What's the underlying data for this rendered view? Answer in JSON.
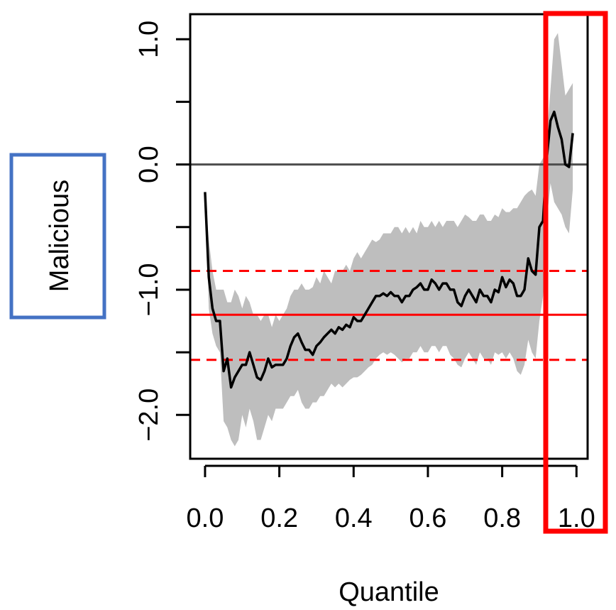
{
  "chart_data": {
    "type": "line",
    "title": "",
    "xlabel": "Quantile",
    "ylabel": "Malicious",
    "xlim": [
      -0.04,
      1.03
    ],
    "ylim": [
      -2.35,
      1.2
    ],
    "x_ticks": [
      0.0,
      0.2,
      0.4,
      0.6,
      0.8,
      1.0
    ],
    "x_tick_labels": [
      "0.0",
      "0.2",
      "0.4",
      "0.6",
      "0.8",
      "1.0"
    ],
    "y_ticks": [
      -2.0,
      -1.5,
      -1.0,
      -0.5,
      0.0,
      0.5,
      1.0
    ],
    "y_tick_labels": [
      "−2.0",
      "",
      "−1.0",
      "",
      "0.0",
      "",
      "1.0"
    ],
    "grid": false,
    "legend": "none",
    "reference_lines": [
      {
        "y": 0.0,
        "style": "solid",
        "color": "#4d4d4d"
      },
      {
        "y": -1.2,
        "style": "solid",
        "color": "#ff0000"
      },
      {
        "y": -0.85,
        "style": "dashed",
        "color": "#ff0000"
      },
      {
        "y": -1.56,
        "style": "dashed",
        "color": "#ff0000"
      }
    ],
    "series": [
      {
        "color": "#000000",
        "band_color": "#bebebe",
        "x": [
          0.0,
          0.01,
          0.02,
          0.03,
          0.04,
          0.05,
          0.06,
          0.07,
          0.08,
          0.09,
          0.1,
          0.11,
          0.12,
          0.13,
          0.14,
          0.15,
          0.16,
          0.17,
          0.18,
          0.19,
          0.2,
          0.21,
          0.22,
          0.23,
          0.24,
          0.25,
          0.26,
          0.27,
          0.28,
          0.29,
          0.3,
          0.31,
          0.32,
          0.33,
          0.34,
          0.35,
          0.36,
          0.37,
          0.38,
          0.39,
          0.4,
          0.41,
          0.42,
          0.43,
          0.44,
          0.45,
          0.46,
          0.47,
          0.48,
          0.49,
          0.5,
          0.51,
          0.52,
          0.53,
          0.54,
          0.55,
          0.56,
          0.57,
          0.58,
          0.59,
          0.6,
          0.61,
          0.62,
          0.63,
          0.64,
          0.65,
          0.66,
          0.67,
          0.68,
          0.69,
          0.7,
          0.71,
          0.72,
          0.73,
          0.74,
          0.75,
          0.76,
          0.77,
          0.78,
          0.79,
          0.8,
          0.81,
          0.82,
          0.83,
          0.84,
          0.85,
          0.86,
          0.87,
          0.88,
          0.89,
          0.9,
          0.91,
          0.92,
          0.93,
          0.94,
          0.95,
          0.96,
          0.97,
          0.98,
          0.99
        ],
        "y": [
          -0.22,
          -0.9,
          -1.15,
          -1.25,
          -1.25,
          -1.65,
          -1.55,
          -1.78,
          -1.7,
          -1.65,
          -1.6,
          -1.6,
          -1.5,
          -1.6,
          -1.7,
          -1.72,
          -1.65,
          -1.55,
          -1.62,
          -1.6,
          -1.6,
          -1.6,
          -1.55,
          -1.45,
          -1.38,
          -1.35,
          -1.42,
          -1.48,
          -1.48,
          -1.52,
          -1.45,
          -1.42,
          -1.38,
          -1.35,
          -1.32,
          -1.35,
          -1.3,
          -1.32,
          -1.28,
          -1.3,
          -1.22,
          -1.25,
          -1.25,
          -1.2,
          -1.15,
          -1.1,
          -1.05,
          -1.05,
          -1.03,
          -1.05,
          -1.02,
          -1.05,
          -1.05,
          -1.1,
          -1.05,
          -1.05,
          -1.0,
          -0.98,
          -0.95,
          -1.0,
          -1.0,
          -0.92,
          -0.95,
          -1.0,
          -0.95,
          -0.95,
          -1.0,
          -1.0,
          -1.1,
          -1.13,
          -1.05,
          -1.0,
          -1.05,
          -1.1,
          -1.0,
          -1.05,
          -1.05,
          -1.1,
          -1.0,
          -1.02,
          -0.9,
          -0.98,
          -0.92,
          -0.95,
          -1.05,
          -1.05,
          -1.0,
          -0.75,
          -0.85,
          -0.88,
          -0.5,
          -0.45,
          0.05,
          0.35,
          0.42,
          0.3,
          0.2,
          0.0,
          -0.02,
          0.25
        ],
        "upper": [
          -0.22,
          -0.6,
          -0.85,
          -1.0,
          -1.0,
          -1.0,
          -1.1,
          -1.1,
          -1.0,
          -1.05,
          -1.15,
          -1.05,
          -1.1,
          -1.2,
          -1.2,
          -1.25,
          -1.2,
          -1.2,
          -1.3,
          -1.2,
          -1.25,
          -1.2,
          -1.15,
          -1.05,
          -1.0,
          -1.0,
          -0.95,
          -1.0,
          -1.0,
          -0.98,
          -0.9,
          -0.95,
          -0.85,
          -0.9,
          -0.95,
          -0.85,
          -0.85,
          -0.85,
          -0.8,
          -0.85,
          -0.75,
          -0.7,
          -0.75,
          -0.7,
          -0.65,
          -0.6,
          -0.62,
          -0.6,
          -0.55,
          -0.55,
          -0.55,
          -0.5,
          -0.5,
          -0.55,
          -0.5,
          -0.55,
          -0.5,
          -0.55,
          -0.45,
          -0.5,
          -0.5,
          -0.45,
          -0.5,
          -0.45,
          -0.5,
          -0.45,
          -0.45,
          -0.45,
          -0.5,
          -0.45,
          -0.4,
          -0.42,
          -0.45,
          -0.45,
          -0.4,
          -0.4,
          -0.45,
          -0.45,
          -0.4,
          -0.42,
          -0.35,
          -0.38,
          -0.38,
          -0.35,
          -0.35,
          -0.3,
          -0.25,
          -0.22,
          -0.2,
          -0.25,
          0.0,
          0.05,
          0.2,
          0.6,
          1.0,
          1.05,
          0.8,
          0.55,
          0.6,
          0.65
        ],
        "lower": [
          -0.22,
          -1.15,
          -1.35,
          -1.45,
          -1.5,
          -2.05,
          -2.1,
          -2.2,
          -2.25,
          -2.2,
          -2.0,
          -2.1,
          -1.95,
          -2.05,
          -2.2,
          -2.2,
          -2.1,
          -2.0,
          -2.05,
          -1.95,
          -1.95,
          -1.95,
          -1.9,
          -1.85,
          -1.85,
          -1.8,
          -1.9,
          -1.95,
          -1.95,
          -1.9,
          -1.9,
          -1.85,
          -1.85,
          -1.8,
          -1.75,
          -1.78,
          -1.75,
          -1.78,
          -1.75,
          -1.72,
          -1.7,
          -1.7,
          -1.68,
          -1.65,
          -1.62,
          -1.6,
          -1.55,
          -1.52,
          -1.5,
          -1.52,
          -1.5,
          -1.52,
          -1.55,
          -1.58,
          -1.55,
          -1.55,
          -1.5,
          -1.5,
          -1.45,
          -1.5,
          -1.5,
          -1.45,
          -1.45,
          -1.5,
          -1.45,
          -1.45,
          -1.52,
          -1.55,
          -1.6,
          -1.62,
          -1.55,
          -1.5,
          -1.55,
          -1.6,
          -1.5,
          -1.55,
          -1.55,
          -1.6,
          -1.5,
          -1.52,
          -1.5,
          -1.55,
          -1.5,
          -1.55,
          -1.65,
          -1.68,
          -1.6,
          -1.4,
          -1.5,
          -1.55,
          -1.25,
          -1.05,
          -0.45,
          -0.15,
          -0.3,
          -0.35,
          -0.4,
          -0.5,
          -0.55,
          -0.2
        ]
      }
    ]
  },
  "annotations": {
    "ylabel_box_color": "#4472c4",
    "highlight_box_color": "#ff0000",
    "highlight_x_range": [
      0.915,
      1.05
    ]
  }
}
